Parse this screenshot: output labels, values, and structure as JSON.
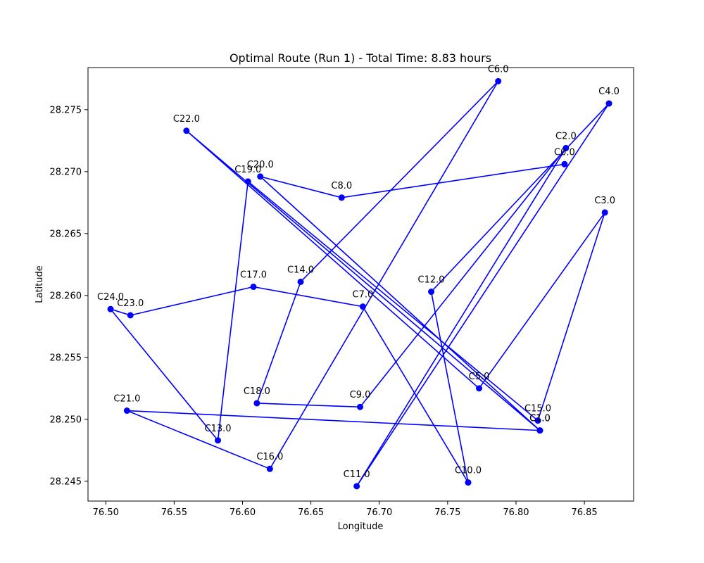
{
  "chart_data": {
    "type": "line",
    "title": "Optimal Route (Run 1) - Total Time: 8.83 hours",
    "xlabel": "Longitude",
    "ylabel": "Latitude",
    "xlim": [
      76.487,
      76.886
    ],
    "ylim": [
      28.2434,
      28.2784
    ],
    "xticks": [
      "76.50",
      "76.55",
      "76.60",
      "76.65",
      "76.70",
      "76.75",
      "76.80",
      "76.85"
    ],
    "yticks": [
      "28.245",
      "28.250",
      "28.255",
      "28.260",
      "28.265",
      "28.270",
      "28.275"
    ],
    "grid": false,
    "color": "#0000ff",
    "series": [
      {
        "points": [
          {
            "label": "C0.0",
            "x": 76.8355,
            "y": 28.2706
          },
          {
            "label": "C8.0",
            "x": 76.6725,
            "y": 28.2679
          },
          {
            "label": "C20.0",
            "x": 76.613,
            "y": 28.2696
          },
          {
            "label": "C1.0",
            "x": 76.8175,
            "y": 28.2491
          },
          {
            "label": "C21.0",
            "x": 76.5155,
            "y": 28.2507
          },
          {
            "label": "C16.0",
            "x": 76.62,
            "y": 28.246
          },
          {
            "label": "C6.0",
            "x": 76.787,
            "y": 28.2773
          },
          {
            "label": "C14.0",
            "x": 76.6425,
            "y": 28.2611
          },
          {
            "label": "C18.0",
            "x": 76.6105,
            "y": 28.2513
          },
          {
            "label": "C9.0",
            "x": 76.686,
            "y": 28.251
          },
          {
            "label": "C2.0",
            "x": 76.8365,
            "y": 28.2719
          },
          {
            "label": "C11.0",
            "x": 76.6835,
            "y": 28.2446
          },
          {
            "label": "C4.0",
            "x": 76.868,
            "y": 28.2755
          },
          {
            "label": "C12.0",
            "x": 76.738,
            "y": 28.2603
          },
          {
            "label": "C10.0",
            "x": 76.765,
            "y": 28.2449
          },
          {
            "label": "C7.0",
            "x": 76.688,
            "y": 28.2591
          },
          {
            "label": "C17.0",
            "x": 76.608,
            "y": 28.2607
          },
          {
            "label": "C23.0",
            "x": 76.518,
            "y": 28.2584
          },
          {
            "label": "C24.0",
            "x": 76.5035,
            "y": 28.2589
          },
          {
            "label": "C13.0",
            "x": 76.582,
            "y": 28.2483
          },
          {
            "label": "C19.0",
            "x": 76.604,
            "y": 28.2692
          },
          {
            "label": "C15.0",
            "x": 76.816,
            "y": 28.2499
          },
          {
            "label": "C3.0",
            "x": 76.865,
            "y": 28.2667
          },
          {
            "label": "C5.0",
            "x": 76.773,
            "y": 28.2525
          },
          {
            "label": "C22.0",
            "x": 76.559,
            "y": 28.2733
          },
          {
            "label": "C1.0",
            "x": 76.8175,
            "y": 28.2491
          }
        ]
      }
    ]
  }
}
